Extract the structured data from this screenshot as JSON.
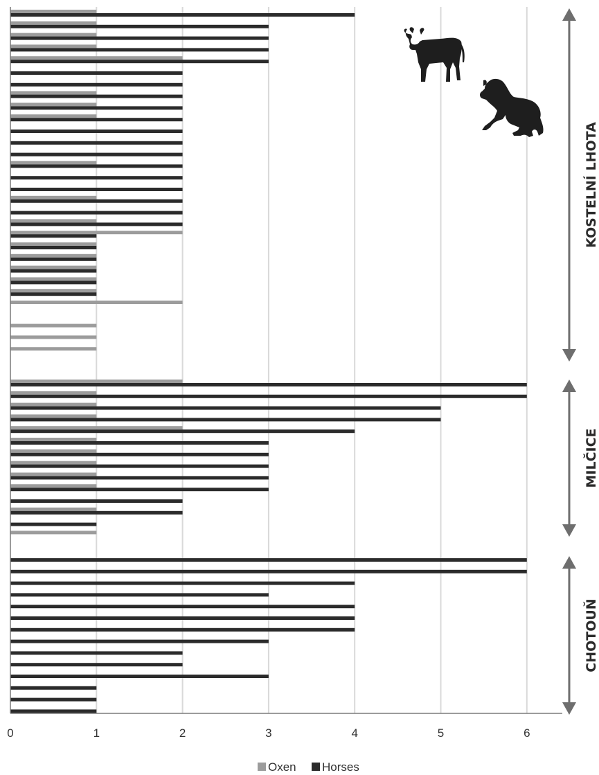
{
  "chart_data": {
    "type": "bar",
    "orientation": "horizontal",
    "xlim": [
      0,
      6.4
    ],
    "x_ticks": [
      "0",
      "1",
      "2",
      "3",
      "4",
      "5",
      "6"
    ],
    "grid": "vertical",
    "legend_position": "bottom",
    "series": [
      {
        "name": "Oxen",
        "color": "#9c9c9c"
      },
      {
        "name": "Horses",
        "color": "#2b2b2b"
      }
    ],
    "groups": [
      {
        "label": "KOSTELNÍ LHOTA",
        "rows": [
          {
            "oxen": 1,
            "horses": 4
          },
          {
            "oxen": 1,
            "horses": 3
          },
          {
            "oxen": 1,
            "horses": 3
          },
          {
            "oxen": 1,
            "horses": 3
          },
          {
            "oxen": 2,
            "horses": 3
          },
          {
            "oxen": 0,
            "horses": 2
          },
          {
            "oxen": 0,
            "horses": 2
          },
          {
            "oxen": 1,
            "horses": 2
          },
          {
            "oxen": 1,
            "horses": 2
          },
          {
            "oxen": 1,
            "horses": 2
          },
          {
            "oxen": 0,
            "horses": 2
          },
          {
            "oxen": 0,
            "horses": 2
          },
          {
            "oxen": 0,
            "horses": 2
          },
          {
            "oxen": 1,
            "horses": 2
          },
          {
            "oxen": 0,
            "horses": 2
          },
          {
            "oxen": 0,
            "horses": 2
          },
          {
            "oxen": 1,
            "horses": 2
          },
          {
            "oxen": 0,
            "horses": 2
          },
          {
            "oxen": 1,
            "horses": 2
          },
          {
            "oxen": 2,
            "horses": 1
          },
          {
            "oxen": 1,
            "horses": 1
          },
          {
            "oxen": 1,
            "horses": 1
          },
          {
            "oxen": 1,
            "horses": 1
          },
          {
            "oxen": 1,
            "horses": 1
          },
          {
            "oxen": 1,
            "horses": 1
          },
          {
            "oxen": 2,
            "horses": 0
          },
          {
            "oxen": 0,
            "horses": 0
          },
          {
            "oxen": 1,
            "horses": 0
          },
          {
            "oxen": 1,
            "horses": 0
          },
          {
            "oxen": 1,
            "horses": 0
          }
        ]
      },
      {
        "label": "MILČICE",
        "rows": [
          {
            "oxen": 2,
            "horses": 6
          },
          {
            "oxen": 1,
            "horses": 6
          },
          {
            "oxen": 1,
            "horses": 5
          },
          {
            "oxen": 1,
            "horses": 5
          },
          {
            "oxen": 2,
            "horses": 4
          },
          {
            "oxen": 1,
            "horses": 3
          },
          {
            "oxen": 1,
            "horses": 3
          },
          {
            "oxen": 1,
            "horses": 3
          },
          {
            "oxen": 1,
            "horses": 3
          },
          {
            "oxen": 1,
            "horses": 3
          },
          {
            "oxen": 0,
            "horses": 2
          },
          {
            "oxen": 1,
            "horses": 2
          },
          {
            "oxen": 0,
            "horses": 1
          },
          {
            "oxen": 1,
            "horses": 0
          }
        ]
      },
      {
        "label": "CHOTOUŇ",
        "rows": [
          {
            "oxen": 0,
            "horses": 6
          },
          {
            "oxen": 0,
            "horses": 6
          },
          {
            "oxen": 0,
            "horses": 4
          },
          {
            "oxen": 0,
            "horses": 3
          },
          {
            "oxen": 0,
            "horses": 4
          },
          {
            "oxen": 0,
            "horses": 4
          },
          {
            "oxen": 0,
            "horses": 4
          },
          {
            "oxen": 0,
            "horses": 3
          },
          {
            "oxen": 0,
            "horses": 2
          },
          {
            "oxen": 0,
            "horses": 2
          },
          {
            "oxen": 0,
            "horses": 3
          },
          {
            "oxen": 0,
            "horses": 1
          },
          {
            "oxen": 0,
            "horses": 1
          },
          {
            "oxen": 0,
            "horses": 1
          }
        ]
      }
    ]
  },
  "decorations": {
    "icons": [
      "ox-silhouette-icon",
      "horse-silhouette-icon"
    ],
    "arrow_color": "#6e6e6e",
    "grid_color": "#d9d9d9"
  }
}
